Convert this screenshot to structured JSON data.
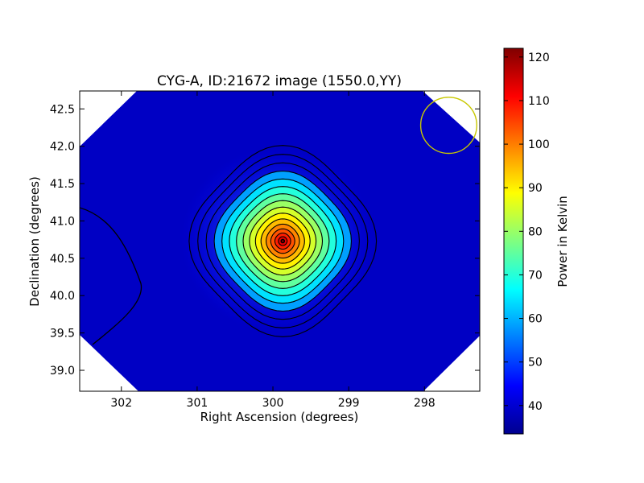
{
  "chart_data": {
    "type": "heatmap",
    "title": "CYG-A, ID:21672 image (1550.0,YY)",
    "xlabel": "Right Ascension (degrees)",
    "ylabel": "Declination (degrees)",
    "xlim": [
      302.55,
      297.27
    ],
    "ylim": [
      38.72,
      42.74
    ],
    "x_ticks": [
      {
        "value": 302,
        "label": "302"
      },
      {
        "value": 301,
        "label": "301"
      },
      {
        "value": 300,
        "label": "300"
      },
      {
        "value": 299,
        "label": "299"
      },
      {
        "value": 298,
        "label": "298"
      }
    ],
    "y_ticks": [
      {
        "value": 39.0,
        "label": "39.0"
      },
      {
        "value": 39.5,
        "label": "39.5"
      },
      {
        "value": 40.0,
        "label": "40.0"
      },
      {
        "value": 40.5,
        "label": "40.5"
      },
      {
        "value": 41.0,
        "label": "41.0"
      },
      {
        "value": 41.5,
        "label": "41.5"
      },
      {
        "value": 42.0,
        "label": "42.0"
      },
      {
        "value": 42.5,
        "label": "42.5"
      }
    ],
    "colormap": "jet",
    "colorbar": {
      "label": "Power in Kelvin",
      "range": [
        33.5,
        122
      ],
      "ticks": [
        {
          "value": 40,
          "label": "40"
        },
        {
          "value": 50,
          "label": "50"
        },
        {
          "value": 60,
          "label": "60"
        },
        {
          "value": 70,
          "label": "70"
        },
        {
          "value": 80,
          "label": "80"
        },
        {
          "value": 90,
          "label": "90"
        },
        {
          "value": 100,
          "label": "100"
        },
        {
          "value": 110,
          "label": "110"
        },
        {
          "value": 120,
          "label": "120"
        }
      ]
    },
    "source": {
      "ra": 299.87,
      "dec": 40.73,
      "peak": 121.5,
      "background": 36
    },
    "beam_circle": {
      "ra": 297.68,
      "dec": 42.28,
      "radius_deg": 0.37,
      "color": "#c8c800"
    },
    "contour_color": "#000000",
    "grid": false
  }
}
